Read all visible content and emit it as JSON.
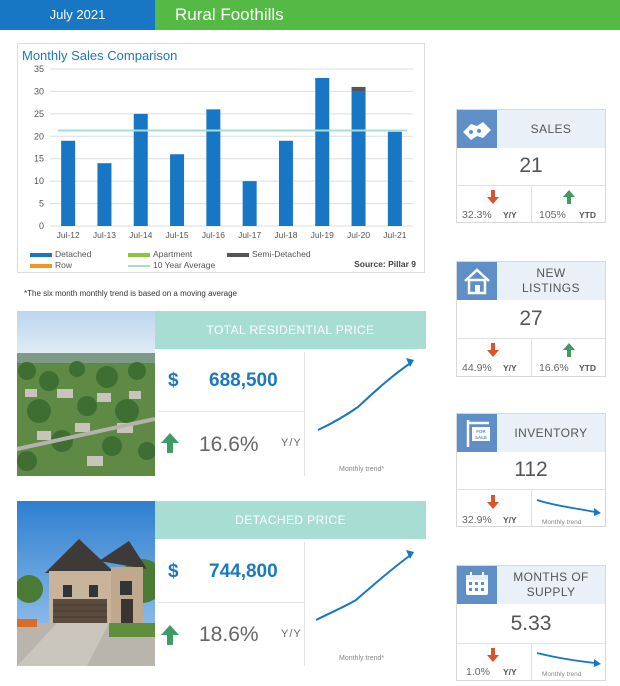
{
  "header": {
    "date": "July 2021",
    "area": "Rural Foothills"
  },
  "chart_data": {
    "type": "bar",
    "title": "Monthly Sales Comparison",
    "categories": [
      "Jul-12",
      "Jul-13",
      "Jul-14",
      "Jul-15",
      "Jul-16",
      "Jul-17",
      "Jul-18",
      "Jul-19",
      "Jul-20",
      "Jul-21"
    ],
    "series": [
      {
        "name": "Detached",
        "color": "#1777c4",
        "values": [
          19,
          14,
          25,
          16,
          26,
          10,
          19,
          33,
          30,
          21
        ]
      },
      {
        "name": "Apartment",
        "color": "#8cc63f",
        "values": [
          0,
          0,
          0,
          0,
          0,
          0,
          0,
          0,
          0,
          0
        ]
      },
      {
        "name": "Semi-Detached",
        "color": "#555555",
        "values": [
          0,
          0,
          0,
          0,
          0,
          0,
          0,
          0,
          1,
          0
        ]
      },
      {
        "name": "Row",
        "color": "#f7941d",
        "values": [
          0,
          0,
          0,
          0,
          0,
          0,
          0,
          0,
          0,
          0
        ]
      }
    ],
    "reference_line": {
      "name": "10 Year Average",
      "value": 21.3,
      "color": "#a8ddd3"
    },
    "ylim": [
      0,
      35
    ],
    "yticks": [
      0,
      5,
      10,
      15,
      20,
      25,
      30,
      35
    ],
    "grid": true,
    "source": "Source: Pillar 9",
    "xlabel": "",
    "ylabel": ""
  },
  "footnote": "*The six month monthly trend is based on a moving average",
  "total_price": {
    "banner": "TOTAL RESIDENTIAL PRICE",
    "dollar": "$",
    "value": "688,500",
    "change": "16.6%",
    "change_unit": "Y/Y",
    "trend_caption": "Monthly trend*"
  },
  "detached_price": {
    "banner": "DETACHED PRICE",
    "dollar": "$",
    "value": "744,800",
    "change": "18.6%",
    "change_unit": "Y/Y",
    "trend_caption": "Monthly trend*"
  },
  "cards": {
    "sales": {
      "label": "SALES",
      "value": "21",
      "yy": "32.3%",
      "yy_unit": "Y/Y",
      "ytd": "105%",
      "ytd_unit": "YTD",
      "icon": "handshake-icon"
    },
    "new_listings": {
      "label1": "NEW",
      "label2": "LISTINGS",
      "value": "27",
      "yy": "44.9%",
      "yy_unit": "Y/Y",
      "ytd": "16.6%",
      "ytd_unit": "YTD",
      "icon": "house-icon"
    },
    "inventory": {
      "label": "INVENTORY",
      "value": "112",
      "yy": "32.9%",
      "yy_unit": "Y/Y",
      "trend_caption": "Monthly trend",
      "icon": "for-sale-sign-icon",
      "sign_text": "FOR SALE"
    },
    "months_supply": {
      "label1": "MONTHS OF",
      "label2": "SUPPLY",
      "value": "5.33",
      "yy": "1.0%",
      "yy_unit": "Y/Y",
      "trend_caption": "Monthly trend",
      "icon": "calendar-icon"
    }
  },
  "colors": {
    "blue": "#1777c4",
    "green": "#55b946",
    "teal": "#a8ddd3",
    "up": "#3f9a63",
    "down": "#d9532c",
    "icon_bg": "#5f8fc6"
  }
}
